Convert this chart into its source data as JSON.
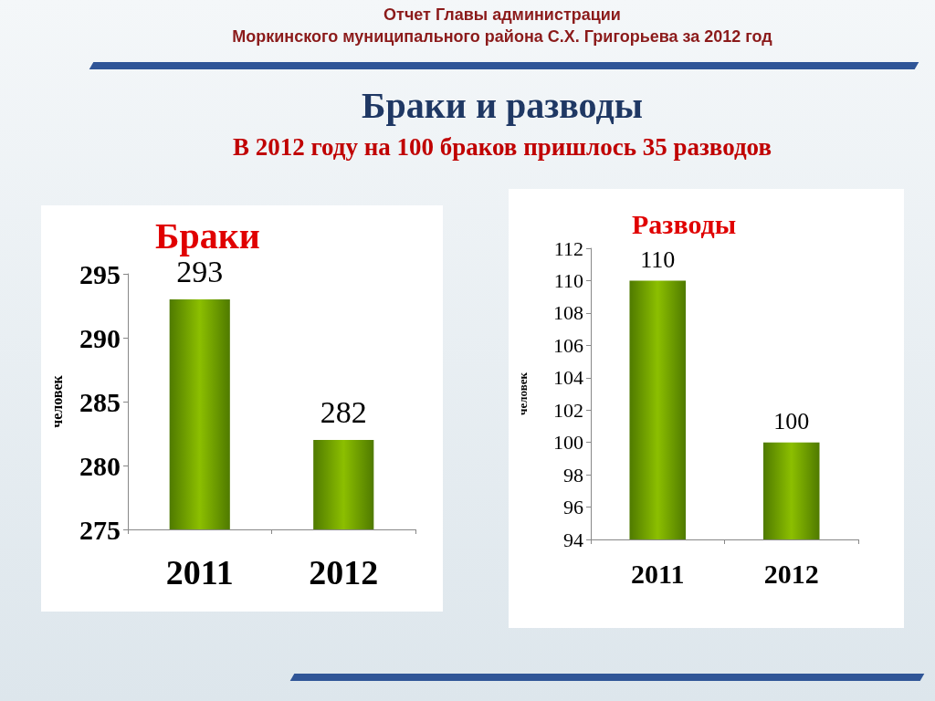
{
  "chart_data": [
    {
      "type": "bar",
      "title": "Браки",
      "ylabel": "человек",
      "categories": [
        "2011",
        "2012"
      ],
      "values": [
        293,
        282
      ],
      "color": "#8cbf00",
      "ylim": [
        275,
        295
      ],
      "yticks": [
        275,
        280,
        285,
        290,
        295
      ],
      "data_labels": true,
      "annotations": [
        "Отчет Главы администрации",
        "Моркинского муниципального района С.Х. Григорьева за 2012 год",
        "Браки и разводы",
        "В 2012 году на 100 браков пришлось 35 разводов"
      ]
    },
    {
      "type": "bar",
      "title": "Разводы",
      "ylabel": "человек",
      "categories": [
        "2011",
        "2012"
      ],
      "values": [
        110,
        100
      ],
      "color": "#8cbf00",
      "ylim": [
        94,
        112
      ],
      "yticks": [
        94,
        96,
        98,
        100,
        102,
        104,
        106,
        108,
        110,
        112
      ],
      "data_labels": true
    }
  ]
}
